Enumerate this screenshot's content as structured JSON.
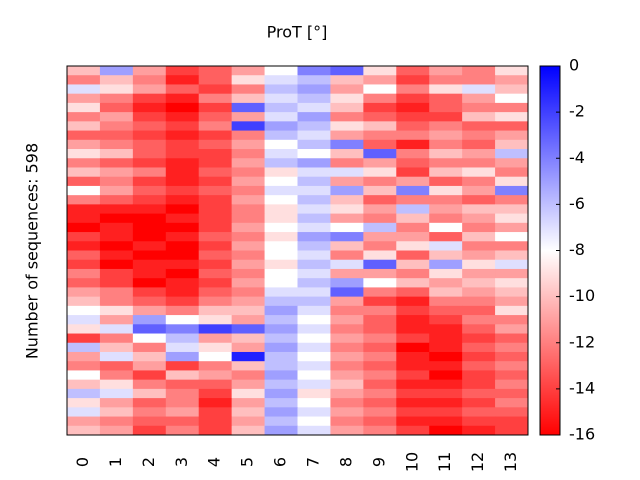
{
  "chart_data": {
    "type": "heatmap",
    "title": "ProT [°]",
    "ylabel": "Number of sequences: 598",
    "categories": [
      "0",
      "1",
      "2",
      "3",
      "4",
      "5",
      "6",
      "7",
      "8",
      "9",
      "10",
      "11",
      "12",
      "13"
    ],
    "zlim": [
      -16,
      0
    ],
    "zticks": [
      0,
      -2,
      -4,
      -6,
      -8,
      -10,
      -12,
      -14,
      -16
    ],
    "colors": [
      "#ff0000",
      "#ffffff",
      "#0000ff"
    ],
    "values": [
      [
        -10,
        -5,
        -11,
        -14,
        -13,
        -11,
        -8,
        -4,
        -3,
        -9,
        -13,
        -11,
        -12,
        -9
      ],
      [
        -12,
        -10,
        -12,
        -15,
        -13,
        -9,
        -7,
        -6,
        -10,
        -11,
        -14,
        -12,
        -12,
        -11
      ],
      [
        -7,
        -9,
        -11,
        -13,
        -14,
        -12,
        -6,
        -5,
        -11,
        -8,
        -12,
        -9,
        -7,
        -10
      ],
      [
        -11,
        -12,
        -14,
        -15,
        -12,
        -10,
        -7,
        -6,
        -9,
        -12,
        -14,
        -13,
        -11,
        -8
      ],
      [
        -9,
        -13,
        -15,
        -16,
        -14,
        -3,
        -6,
        -7,
        -10,
        -14,
        -15,
        -13,
        -12,
        -12
      ],
      [
        -12,
        -11,
        -14,
        -15,
        -13,
        -11,
        -7,
        -5,
        -12,
        -13,
        -14,
        -14,
        -10,
        -9
      ],
      [
        -10,
        -12,
        -13,
        -14,
        -12,
        -2,
        -5,
        -6,
        -9,
        -10,
        -13,
        -12,
        -13,
        -13
      ],
      [
        -13,
        -13,
        -14,
        -15,
        -14,
        -12,
        -6,
        -7,
        -11,
        -12,
        -12,
        -11,
        -12,
        -11
      ],
      [
        -11,
        -12,
        -13,
        -14,
        -13,
        -11,
        -8,
        -6,
        -4,
        -13,
        -15,
        -12,
        -13,
        -10
      ],
      [
        -9,
        -10,
        -13,
        -14,
        -14,
        -12,
        -7,
        -8,
        -10,
        -3,
        -12,
        -10,
        -11,
        -6
      ],
      [
        -12,
        -13,
        -14,
        -15,
        -14,
        -11,
        -6,
        -5,
        -12,
        -11,
        -13,
        -12,
        -12,
        -11
      ],
      [
        -10,
        -11,
        -12,
        -15,
        -13,
        -12,
        -9,
        -7,
        -7,
        -9,
        -14,
        -10,
        -9,
        -12
      ],
      [
        -13,
        -12,
        -14,
        -15,
        -14,
        -11,
        -8,
        -6,
        -11,
        -12,
        -11,
        -13,
        -12,
        -9
      ],
      [
        -8,
        -11,
        -13,
        -14,
        -13,
        -12,
        -7,
        -7,
        -5,
        -10,
        -4,
        -9,
        -11,
        -4
      ],
      [
        -12,
        -13,
        -14,
        -15,
        -14,
        -11,
        -8,
        -6,
        -10,
        -13,
        -12,
        -12,
        -13,
        -12
      ],
      [
        -15,
        -15,
        -15,
        -16,
        -14,
        -12,
        -9,
        -7,
        -9,
        -11,
        -6,
        -11,
        -10,
        -10
      ],
      [
        -15,
        -16,
        -16,
        -15,
        -14,
        -12,
        -9,
        -6,
        -11,
        -12,
        -10,
        -12,
        -11,
        -9
      ],
      [
        -16,
        -15,
        -16,
        -16,
        -14,
        -11,
        -8,
        -7,
        -8,
        -6,
        -12,
        -8,
        -12,
        -11
      ],
      [
        -14,
        -15,
        -16,
        -15,
        -13,
        -12,
        -9,
        -5,
        -4,
        -11,
        -11,
        -13,
        -10,
        -8
      ],
      [
        -15,
        -16,
        -15,
        -16,
        -14,
        -11,
        -8,
        -6,
        -10,
        -12,
        -9,
        -7,
        -12,
        -12
      ],
      [
        -13,
        -15,
        -16,
        -16,
        -13,
        -12,
        -8,
        -7,
        -12,
        -9,
        -13,
        -10,
        -11,
        -10
      ],
      [
        -14,
        -16,
        -15,
        -15,
        -14,
        -11,
        -9,
        -6,
        -7,
        -3,
        -10,
        -5,
        -9,
        -7
      ],
      [
        -12,
        -14,
        -15,
        -16,
        -13,
        -12,
        -8,
        -7,
        -11,
        -11,
        -12,
        -9,
        -11,
        -11
      ],
      [
        -13,
        -14,
        -16,
        -15,
        -14,
        -11,
        -8,
        -6,
        -5,
        -8,
        -10,
        -11,
        -10,
        -9
      ],
      [
        -11,
        -12,
        -14,
        -15,
        -13,
        -12,
        -7,
        -7,
        -3,
        -12,
        -13,
        -10,
        -11,
        -10
      ],
      [
        -10,
        -12,
        -13,
        -14,
        -12,
        -11,
        -6,
        -6,
        -11,
        -14,
        -15,
        -12,
        -12,
        -11
      ],
      [
        -8,
        -9,
        -11,
        -12,
        -10,
        -10,
        -5,
        -7,
        -12,
        -12,
        -14,
        -13,
        -13,
        -9
      ],
      [
        -7,
        -11,
        -5,
        -8,
        -9,
        -11,
        -6,
        -8,
        -11,
        -13,
        -15,
        -14,
        -12,
        -12
      ],
      [
        -9,
        -7,
        -3,
        -4,
        -2,
        -3,
        -5,
        -7,
        -12,
        -13,
        -15,
        -15,
        -13,
        -11
      ],
      [
        -14,
        -12,
        -8,
        -6,
        -11,
        -10,
        -6,
        -8,
        -11,
        -12,
        -14,
        -15,
        -14,
        -13
      ],
      [
        -6,
        -10,
        -12,
        -7,
        -9,
        -11,
        -5,
        -7,
        -12,
        -13,
        -16,
        -15,
        -13,
        -12
      ],
      [
        -11,
        -7,
        -10,
        -5,
        -8,
        -1,
        -6,
        -8,
        -11,
        -12,
        -15,
        -16,
        -14,
        -13
      ],
      [
        -12,
        -13,
        -11,
        -14,
        -12,
        -10,
        -6,
        -7,
        -12,
        -13,
        -15,
        -15,
        -13,
        -12
      ],
      [
        -8,
        -12,
        -14,
        -10,
        -11,
        -12,
        -5,
        -8,
        -11,
        -12,
        -14,
        -16,
        -14,
        -13
      ],
      [
        -10,
        -9,
        -12,
        -13,
        -13,
        -11,
        -6,
        -7,
        -10,
        -13,
        -15,
        -15,
        -14,
        -12
      ],
      [
        -6,
        -7,
        -10,
        -12,
        -14,
        -9,
        -5,
        -9,
        -11,
        -12,
        -14,
        -14,
        -13,
        -13
      ],
      [
        -9,
        -11,
        -13,
        -12,
        -15,
        -11,
        -6,
        -8,
        -12,
        -13,
        -15,
        -15,
        -14,
        -12
      ],
      [
        -7,
        -10,
        -12,
        -11,
        -14,
        -10,
        -5,
        -7,
        -11,
        -12,
        -14,
        -14,
        -13,
        -13
      ],
      [
        -11,
        -12,
        -13,
        -13,
        -14,
        -11,
        -6,
        -8,
        -12,
        -13,
        -15,
        -15,
        -14,
        -14
      ],
      [
        -10,
        -11,
        -14,
        -12,
        -14,
        -10,
        -5,
        -7,
        -11,
        -12,
        -14,
        -16,
        -15,
        -14
      ]
    ]
  }
}
